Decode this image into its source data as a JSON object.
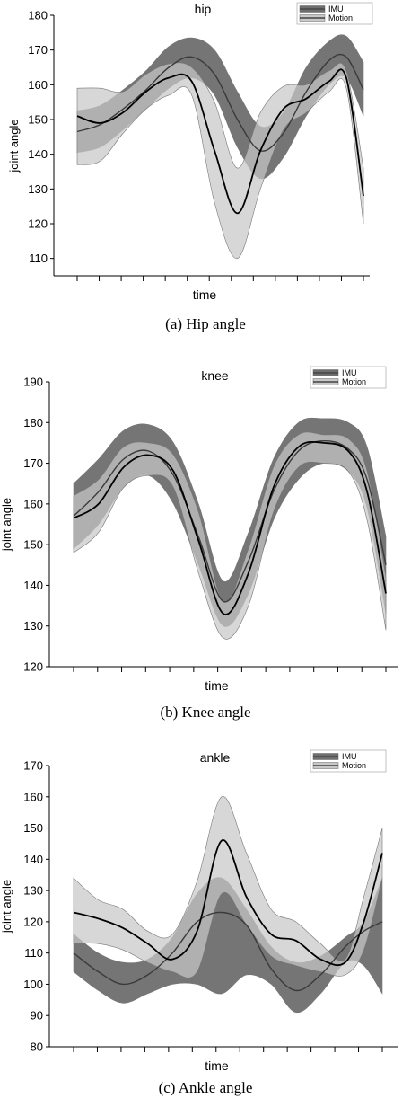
{
  "chart_data": [
    {
      "type": "line",
      "title": "hip",
      "xlabel": "time",
      "ylabel": "joint angle",
      "caption": "(a) Hip angle",
      "ylim": [
        105,
        180
      ],
      "yticks": [
        110,
        120,
        130,
        140,
        150,
        160,
        170,
        180
      ],
      "x_ticks_count": 14,
      "legend": {
        "placement": "top-right",
        "entries": [
          "IMU",
          "Motion"
        ]
      },
      "x": [
        0,
        0.08,
        0.16,
        0.24,
        0.32,
        0.4,
        0.48,
        0.56,
        0.64,
        0.72,
        0.8,
        0.88,
        0.94,
        1.0
      ],
      "series": [
        {
          "name": "IMU",
          "color": "#5a5a5a",
          "band_color": "#6e6e6e",
          "mean": [
            146.5,
            148.5,
            153,
            158.5,
            165,
            168,
            163,
            150,
            141,
            146,
            158,
            167,
            168,
            158.5
          ],
          "upper": [
            152.5,
            154,
            158.5,
            164,
            171,
            173.5,
            170,
            158,
            148,
            152,
            165,
            172.5,
            174,
            166.5
          ],
          "lower": [
            140.5,
            142,
            147,
            153,
            159,
            162,
            157,
            142,
            133,
            139,
            151,
            160,
            162,
            151
          ]
        },
        {
          "name": "Motion",
          "color": "#111111",
          "band_color": "#c8c8c8",
          "mean": [
            151,
            149,
            152,
            158,
            162,
            161,
            141,
            123,
            141,
            153,
            156,
            161,
            162,
            128
          ],
          "upper": [
            159,
            159,
            158,
            163,
            166,
            165,
            155,
            136,
            152,
            159.5,
            160,
            164,
            164,
            136
          ],
          "lower": [
            137,
            138,
            146,
            153,
            157,
            157,
            126,
            110,
            130,
            147,
            152,
            158,
            159,
            120
          ]
        }
      ]
    },
    {
      "type": "line",
      "title": "knee",
      "xlabel": "time",
      "ylabel": "joint angle",
      "caption": "(b) Knee angle",
      "ylim": [
        120,
        190
      ],
      "yticks": [
        120,
        130,
        140,
        150,
        160,
        170,
        180,
        190
      ],
      "x_ticks_count": 14,
      "legend": {
        "placement": "top-right",
        "entries": [
          "IMU",
          "Motion"
        ]
      },
      "x": [
        0,
        0.08,
        0.16,
        0.24,
        0.32,
        0.4,
        0.48,
        0.56,
        0.64,
        0.72,
        0.8,
        0.88,
        0.94,
        1.0
      ],
      "series": [
        {
          "name": "IMU",
          "color": "#5a5a5a",
          "band_color": "#6e6e6e",
          "mean": [
            157,
            163,
            171,
            173,
            167,
            152,
            136,
            146,
            163,
            173,
            175.5,
            173.5,
            166,
            145
          ],
          "upper": [
            165,
            171,
            178,
            179.5,
            175,
            160,
            141,
            153,
            171,
            180,
            181,
            180,
            174,
            152
          ],
          "lower": [
            149,
            155,
            164,
            167,
            160,
            145,
            130,
            138,
            156,
            166,
            170,
            168,
            159,
            133
          ]
        },
        {
          "name": "Motion",
          "color": "#111111",
          "band_color": "#c8c8c8",
          "mean": [
            156.5,
            160,
            169,
            172,
            168,
            151,
            133,
            143,
            164,
            174,
            175,
            173,
            163,
            138
          ],
          "upper": [
            162,
            166,
            174,
            175,
            172,
            158,
            136,
            149,
            169,
            177,
            177,
            176,
            168,
            142
          ],
          "lower": [
            148,
            153,
            164,
            167,
            164,
            143,
            127,
            135,
            158,
            169,
            170,
            168,
            156,
            129
          ]
        }
      ]
    },
    {
      "type": "line",
      "title": "ankle",
      "xlabel": "time",
      "ylabel": "joint angle",
      "caption": "(c) Ankle angle",
      "ylim": [
        80,
        170
      ],
      "yticks": [
        80,
        90,
        100,
        110,
        120,
        130,
        140,
        150,
        160,
        170
      ],
      "x_ticks_count": 14,
      "legend": {
        "placement": "top-right",
        "entries": [
          "IMU",
          "Motion"
        ]
      },
      "x": [
        0,
        0.08,
        0.16,
        0.24,
        0.32,
        0.4,
        0.48,
        0.56,
        0.64,
        0.72,
        0.8,
        0.88,
        0.94,
        1.0
      ],
      "series": [
        {
          "name": "IMU",
          "color": "#5a5a5a",
          "band_color": "#6e6e6e",
          "mean": [
            110,
            104,
            100,
            103,
            110,
            120,
            123,
            119,
            105,
            98,
            103,
            112,
            117,
            120
          ],
          "upper": [
            116,
            110,
            107,
            108,
            115,
            129,
            134,
            124,
            112,
            107,
            109,
            115,
            120,
            134
          ],
          "lower": [
            104,
            98,
            94,
            97,
            100,
            100,
            97,
            103,
            100,
            91,
            97,
            107,
            106,
            97
          ]
        },
        {
          "name": "Motion",
          "color": "#111111",
          "band_color": "#c8c8c8",
          "mean": [
            123,
            121,
            118,
            113,
            108,
            117,
            146,
            128,
            116,
            114,
            108,
            107,
            120,
            142
          ],
          "upper": [
            134,
            127,
            124,
            117,
            116,
            133,
            160,
            142,
            124,
            120,
            113,
            108,
            128,
            150
          ],
          "lower": [
            113,
            113,
            111,
            107,
            104,
            104,
            129,
            119,
            109,
            106,
            104,
            103,
            111,
            134
          ]
        }
      ]
    }
  ]
}
